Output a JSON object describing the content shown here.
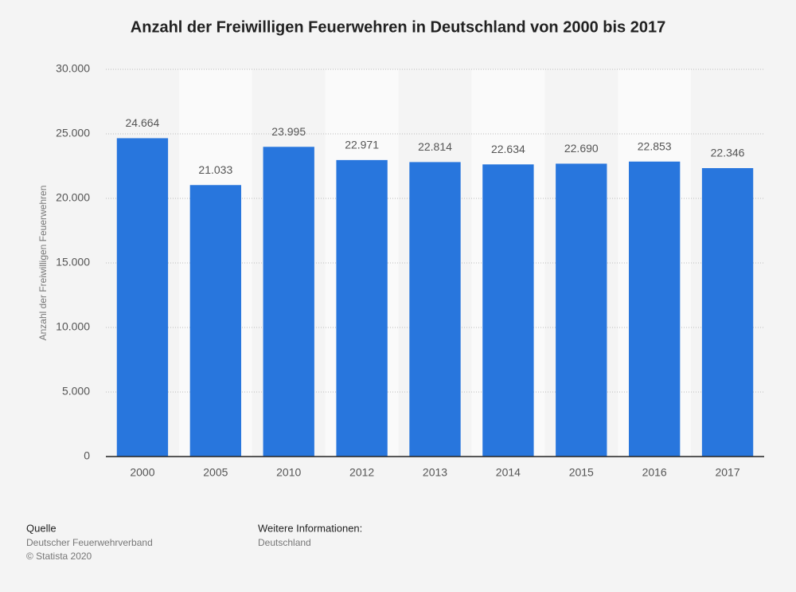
{
  "chart_data": {
    "type": "bar",
    "title": "Anzahl der Freiwilligen Feuerwehren in Deutschland von 2000 bis 2017",
    "y_label": "Anzahl der Freiwilligen Feuerwehren",
    "categories": [
      "2000",
      "2005",
      "2010",
      "2012",
      "2013",
      "2014",
      "2015",
      "2016",
      "2017"
    ],
    "values": [
      24664,
      21033,
      23995,
      22971,
      22814,
      22634,
      22690,
      22853,
      22346
    ],
    "value_labels": [
      "24.664",
      "21.033",
      "23.995",
      "22.971",
      "22.814",
      "22.634",
      "22.690",
      "22.853",
      "22.346"
    ],
    "color": "#2876dd",
    "ylim": [
      0,
      30000
    ],
    "yticks": [
      0,
      {
        "value": 5000,
        "label": "5.000"
      },
      {
        "value": 10000,
        "label": "10.000"
      },
      {
        "value": 15000,
        "label": "15.000"
      },
      {
        "value": 20000,
        "label": "20.000"
      },
      {
        "value": 25000,
        "label": "25.000"
      },
      {
        "value": 30000,
        "label": "30.000"
      }
    ],
    "grid": true
  },
  "footer": {
    "source_heading": "Quelle",
    "source": "Deutscher Feuerwehrverband",
    "copyright": "© Statista 2020",
    "info_heading": "Weitere Informationen:",
    "info": "Deutschland"
  }
}
